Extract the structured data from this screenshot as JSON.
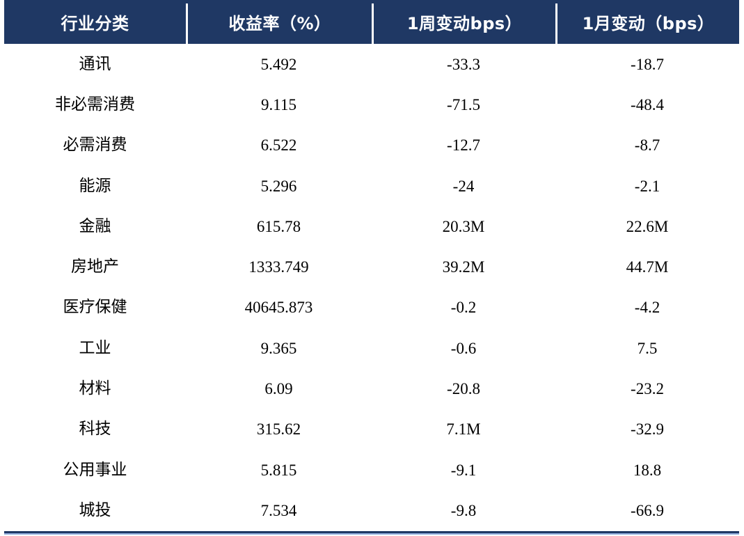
{
  "chart_data": {
    "type": "table",
    "title": "",
    "columns": [
      "行业分类",
      "收益率（%）",
      "1周变动bps）",
      "1月变动（bps）"
    ],
    "rows": [
      [
        "通讯",
        "5.492",
        "-33.3",
        "-18.7"
      ],
      [
        "非必需消费",
        "9.115",
        "-71.5",
        "-48.4"
      ],
      [
        "必需消费",
        "6.522",
        "-12.7",
        "-8.7"
      ],
      [
        "能源",
        "5.296",
        "-24",
        "-2.1"
      ],
      [
        "金融",
        "615.78",
        "20.3M",
        "22.6M"
      ],
      [
        "房地产",
        "1333.749",
        "39.2M",
        "44.7M"
      ],
      [
        "医疗保健",
        "40645.873",
        "-0.2",
        "-4.2"
      ],
      [
        "工业",
        "9.365",
        "-0.6",
        "7.5"
      ],
      [
        "材料",
        "6.09",
        "-20.8",
        "-23.2"
      ],
      [
        "科技",
        "315.62",
        "7.1M",
        "-32.9"
      ],
      [
        "公用事业",
        "5.815",
        "-9.1",
        "18.8"
      ],
      [
        "城投",
        "7.534",
        "-9.8",
        "-66.9"
      ]
    ],
    "layout": {
      "legend": "none",
      "grid": "off",
      "header_position": "top"
    }
  },
  "colors": {
    "header_bg": "#1F3864",
    "header_text": "#ffffff",
    "body_text": "#000000",
    "bottom_rule_dark": "#1F3864",
    "bottom_rule_light": "#8EAADB",
    "separator": "#ffffff"
  }
}
